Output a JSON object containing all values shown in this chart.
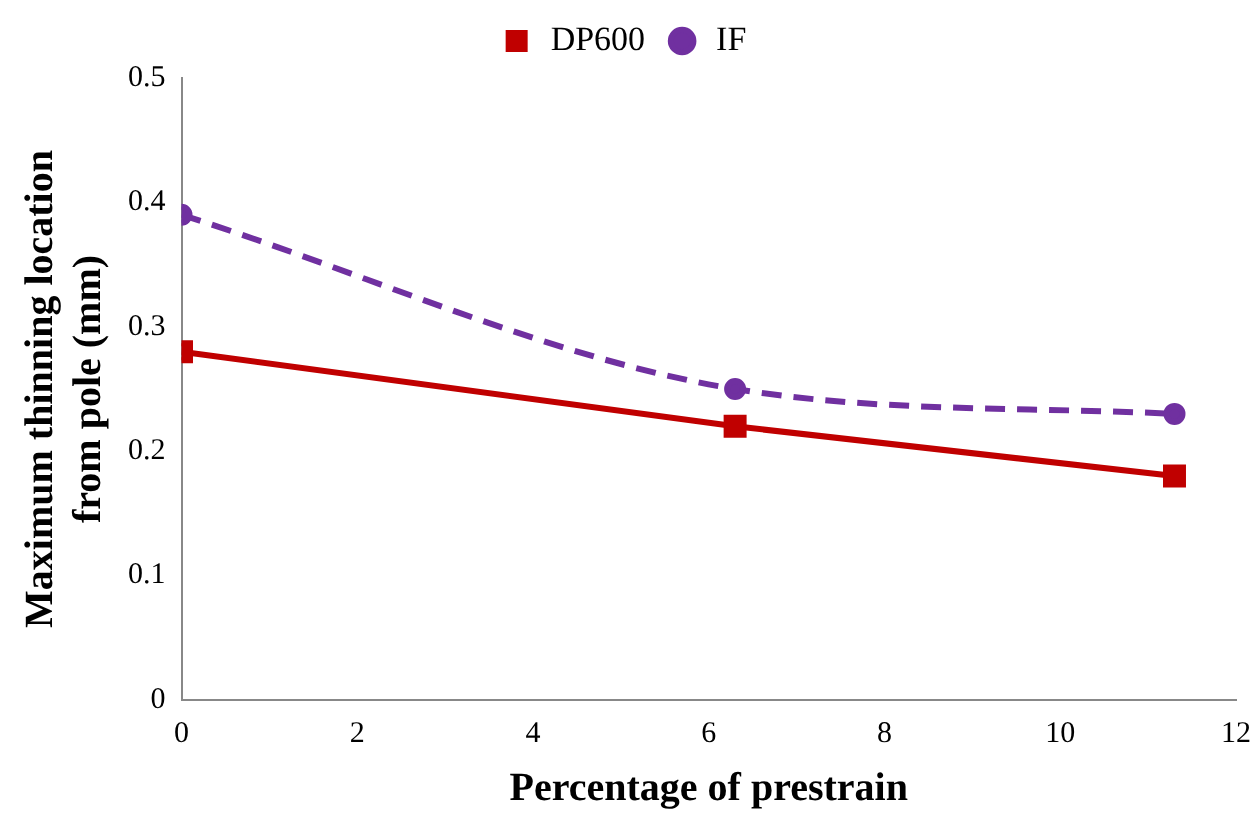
{
  "chart_data": {
    "type": "line",
    "xlabel": "Percentage of prestrain",
    "ylabel": "Maximum thinning location from pole (mm)",
    "xlim": [
      0,
      12
    ],
    "xticks": [
      0,
      2,
      4,
      6,
      8,
      10,
      12
    ],
    "ylim": [
      0,
      0.5
    ],
    "yticks": [
      0,
      0.1,
      0.2,
      0.3,
      0.4,
      0.5
    ],
    "grid": false,
    "legend": "top",
    "series": [
      {
        "name": "DP600",
        "color": "#c00000",
        "x": [
          0,
          6.3,
          11.3
        ],
        "values": [
          0.28,
          0.22,
          0.18
        ],
        "marker": "square",
        "line_style": "solid"
      },
      {
        "name": "IF",
        "color": "#7030a0",
        "x": [
          0,
          6.3,
          11.3
        ],
        "values": [
          0.39,
          0.25,
          0.23
        ],
        "marker": "circle",
        "line_style": "dashed"
      }
    ]
  }
}
